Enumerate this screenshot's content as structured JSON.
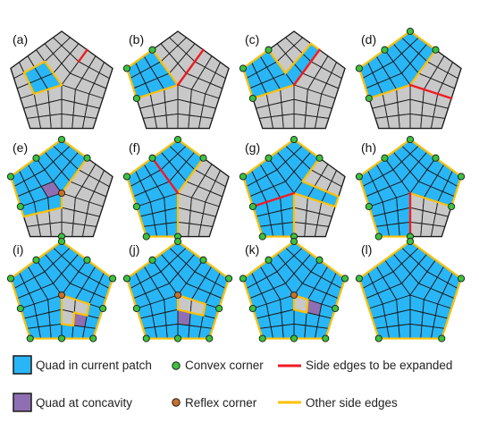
{
  "panels": [
    {
      "label": "(a)",
      "stage": 0
    },
    {
      "label": "(b)",
      "stage": 1
    },
    {
      "label": "(c)",
      "stage": 2
    },
    {
      "label": "(d)",
      "stage": 3
    },
    {
      "label": "(e)",
      "stage": 4
    },
    {
      "label": "(f)",
      "stage": 5
    },
    {
      "label": "(g)",
      "stage": 6
    },
    {
      "label": "(h)",
      "stage": 7
    },
    {
      "label": "(i)",
      "stage": 8
    },
    {
      "label": "(j)",
      "stage": 9
    },
    {
      "label": "(k)",
      "stage": 10
    },
    {
      "label": "(l)",
      "stage": 11
    }
  ],
  "legend": {
    "quad_current": "Quad in current patch",
    "quad_concavity": "Quad at concavity",
    "convex_corner": "Convex corner",
    "reflex_corner": "Reflex corner",
    "side_expand": "Side edges to be expanded",
    "side_other": "Other side edges"
  },
  "colors": {
    "patch": "#29b6f6",
    "unfilled": "#c8c8c8",
    "concavity": "#8e6fb3",
    "convex": "#3cc23c",
    "reflex": "#c8702a",
    "expand": "#ee1c24",
    "other": "#ffc000",
    "mesh": "#1a1a1a"
  }
}
